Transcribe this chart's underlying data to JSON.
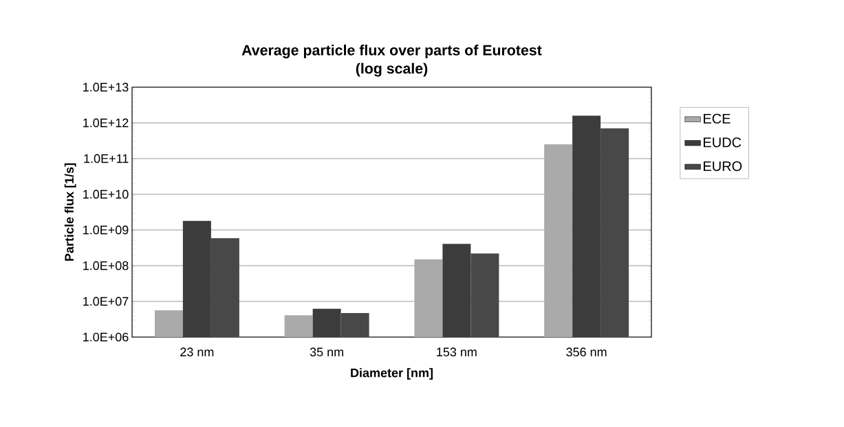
{
  "chart_data": {
    "type": "bar",
    "title": "Average particle flux over parts of Eurotest\n(log scale)",
    "xlabel": "Diameter [nm]",
    "ylabel": "Particle flux [1/s]",
    "categories": [
      "23 nm",
      "35 nm",
      "153 nm",
      "356 nm"
    ],
    "series": [
      {
        "name": "ECE",
        "color": "#aaaaaa",
        "values": [
          5600000.0,
          4100000.0,
          150000000.0,
          250000000000.0
        ]
      },
      {
        "name": "EUDC",
        "color": "#3c3c3c",
        "values": [
          1800000000.0,
          6200000.0,
          410000000.0,
          1600000000000.0
        ]
      },
      {
        "name": "EURO",
        "color": "#484848",
        "values": [
          590000000.0,
          4700000.0,
          220000000.0,
          700000000000.0
        ]
      }
    ],
    "log": "y",
    "ylim": [
      1000000.0,
      10000000000000.0
    ],
    "yticks": [
      {
        "value": 1000000.0,
        "label": "1.0E+06"
      },
      {
        "value": 10000000.0,
        "label": "1.0E+07"
      },
      {
        "value": 100000000.0,
        "label": "1.0E+08"
      },
      {
        "value": 1000000000.0,
        "label": "1.0E+09"
      },
      {
        "value": 10000000000.0,
        "label": "1.0E+10"
      },
      {
        "value": 100000000000.0,
        "label": "1.0E+11"
      },
      {
        "value": 1000000000000.0,
        "label": "1.0E+12"
      },
      {
        "value": 10000000000000.0,
        "label": "1.0E+13"
      }
    ],
    "grid": "y",
    "legend": "right"
  }
}
